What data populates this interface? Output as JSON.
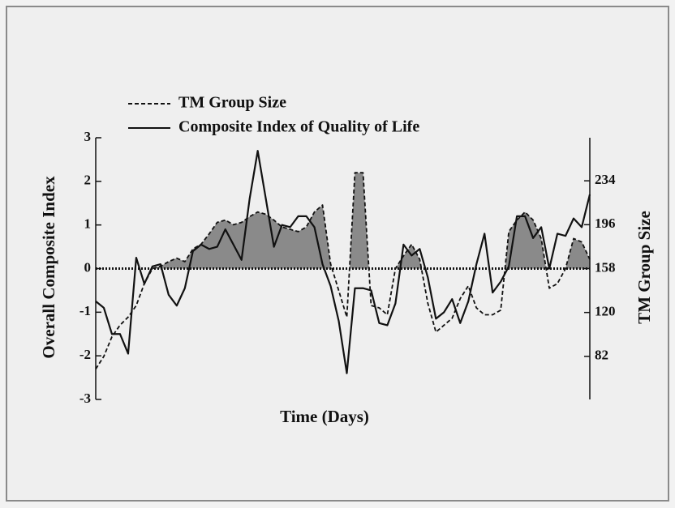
{
  "chart_data": {
    "type": "line",
    "xlabel": "Time (Days)",
    "ylabel": "Overall Composite Index",
    "y2label": "TM Group Size",
    "x": [
      0,
      1,
      2,
      3,
      4,
      5,
      6,
      7,
      8,
      9,
      10,
      11,
      12,
      13,
      14,
      15,
      16,
      17,
      18,
      19,
      20,
      21,
      22,
      23,
      24,
      25,
      26,
      27,
      28,
      29,
      30,
      31,
      32,
      33,
      34,
      35,
      36,
      37,
      38,
      39,
      40,
      41,
      42,
      43,
      44,
      45,
      46,
      47,
      48,
      49,
      50,
      51,
      52,
      53,
      54,
      55,
      56,
      57,
      58,
      59,
      60,
      61
    ],
    "xlim": [
      0,
      61
    ],
    "ylim": [
      -3,
      3
    ],
    "yticks": [
      -3,
      -2,
      -1,
      0,
      1,
      2,
      3
    ],
    "y2lim": [
      44.7,
      271.3
    ],
    "y2ticks": [
      82,
      120,
      158,
      196,
      234
    ],
    "legend": "top-left",
    "series": [
      {
        "name": "TM Group Size",
        "color": "#111111",
        "style": "dashed",
        "axis": "y2",
        "fill": "#8a8a8a",
        "baseline": 158,
        "values": [
          71,
          82,
          99,
          109,
          116,
          126,
          145,
          158,
          160,
          164,
          167,
          164,
          175,
          179,
          188,
          198,
          200,
          196,
          198,
          203,
          207,
          205,
          200,
          194,
          192,
          190,
          194,
          207,
          213,
          162,
          139,
          116,
          241,
          241,
          126,
          124,
          118,
          158,
          169,
          179,
          166,
          128,
          103,
          109,
          115,
          132,
          143,
          124,
          118,
          118,
          122,
          190,
          200,
          207,
          200,
          184,
          141,
          145,
          158,
          184,
          181,
          166
        ]
      },
      {
        "name": "Composite Index of Quality of Life",
        "color": "#111111",
        "style": "solid",
        "values": [
          -0.75,
          -0.9,
          -1.5,
          -1.5,
          -1.95,
          0.25,
          -0.35,
          0.05,
          0.1,
          -0.6,
          -0.85,
          -0.45,
          0.4,
          0.55,
          0.45,
          0.5,
          0.9,
          0.55,
          0.2,
          1.6,
          2.7,
          1.6,
          0.5,
          1.0,
          0.95,
          1.2,
          1.2,
          0.95,
          0.1,
          -0.4,
          -1.2,
          -2.4,
          -0.45,
          -0.45,
          -0.5,
          -1.25,
          -1.3,
          -0.8,
          0.55,
          0.3,
          0.45,
          -0.2,
          -1.15,
          -1.0,
          -0.7,
          -1.25,
          -0.75,
          0.1,
          0.8,
          -0.55,
          -0.3,
          0.05,
          1.2,
          1.2,
          0.7,
          0.95,
          0.0,
          0.8,
          0.75,
          1.15,
          0.95,
          1.7
        ]
      }
    ]
  }
}
